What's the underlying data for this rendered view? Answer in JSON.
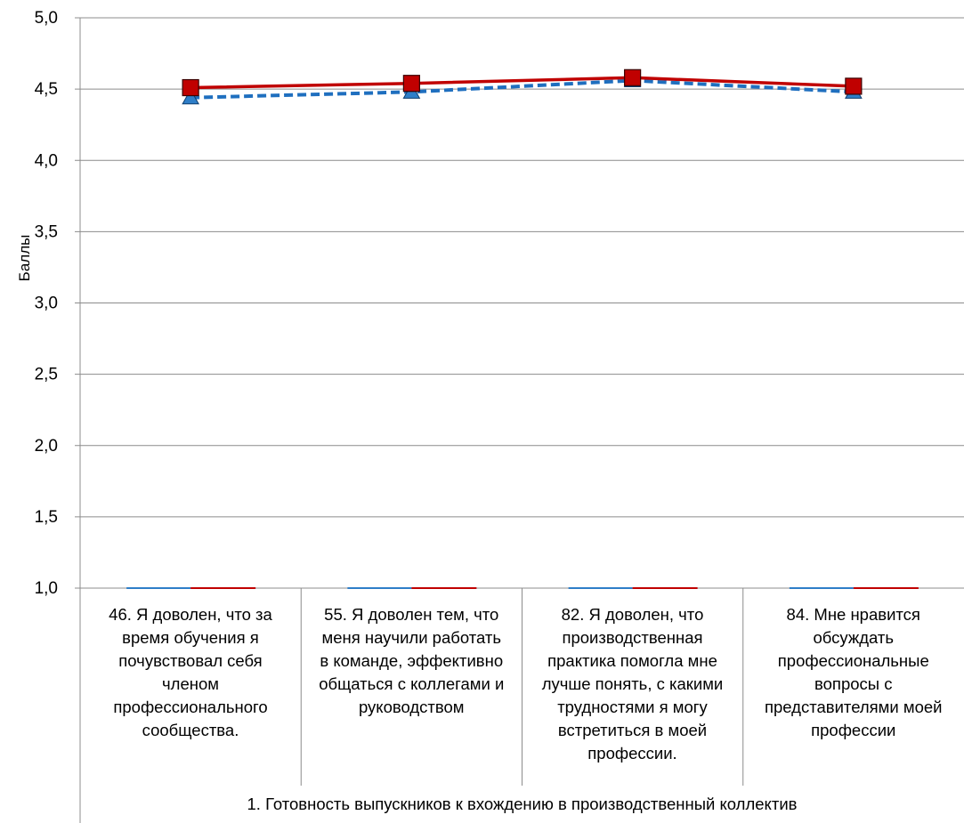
{
  "chart_data": {
    "type": "line",
    "title": "",
    "ylabel": "Баллы",
    "xlabel": "1. Готовность выпускников к вхождению в производственный коллектив",
    "ylim": [
      1.0,
      5.0
    ],
    "yticks": [
      "1,0",
      "1,5",
      "2,0",
      "2,5",
      "3,0",
      "3,5",
      "4,0",
      "4,5",
      "5,0"
    ],
    "grid": true,
    "categories": [
      "46. Я доволен, что за\nвремя обучения я\nпочувствовал себя\nчленом\nпрофессионального\nсообщества.",
      "55. Я доволен тем, что\nменя научили работать\nв команде, эффективно\nобщаться с коллегами и\nруководством",
      "82. Я доволен, что\nпроизводственная\nпрактика помогла мне\nлучше понять, с какими\nтрудностями я могу\nвстретиться в моей\nпрофессии.",
      "84. Мне нравится\nобсуждать\nпрофессиональные\nвопросы  с\nпредставителями  моей\nпрофессии"
    ],
    "series": [
      {
        "values": [
          4.44,
          4.48,
          4.56,
          4.48
        ],
        "color": "#1F6FBF",
        "marker": "triangle",
        "dash": true,
        "fill": "#2E7EC8"
      },
      {
        "values": [
          4.51,
          4.54,
          4.58,
          4.52
        ],
        "color": "#C00000",
        "marker": "square",
        "dash": false,
        "fill": "#C00000"
      }
    ]
  }
}
